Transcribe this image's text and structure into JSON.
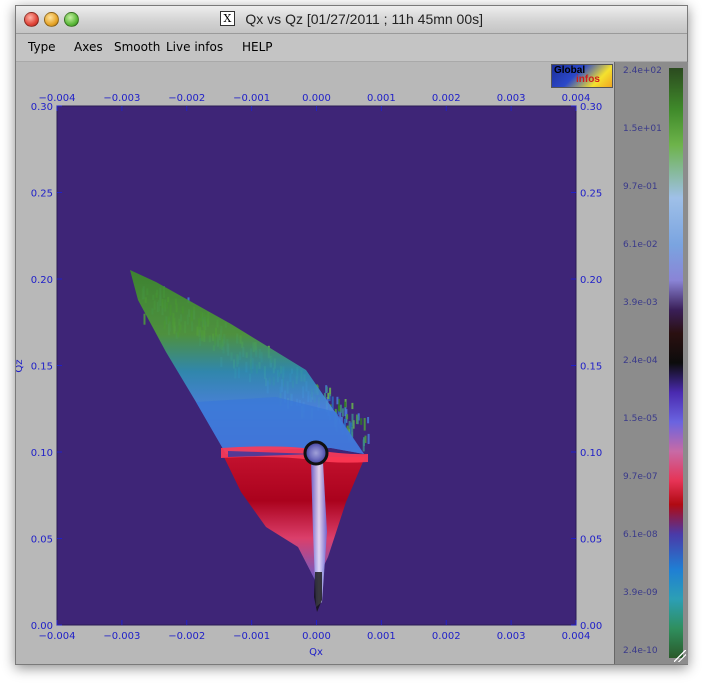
{
  "window": {
    "title": "Qx vs Qz [01/27/2011 ; 11h 45mn 00s]",
    "x_icon": "X"
  },
  "menu": {
    "items": [
      {
        "label": "Type"
      },
      {
        "label": "Axes"
      },
      {
        "label": "Smooth"
      },
      {
        "label": "Live infos"
      },
      {
        "label": "HELP"
      }
    ]
  },
  "logo": {
    "line1": "Global",
    "line2": "infos"
  },
  "plot": {
    "xlabel": "Qx",
    "ylabel": "Qz",
    "xlim": [
      -0.004,
      0.004
    ],
    "ylim": [
      0.0,
      0.3
    ],
    "x_ticks": [
      "−0.004",
      "−0.003",
      "−0.002",
      "−0.001",
      "0.000",
      "0.001",
      "0.002",
      "0.003",
      "0.004"
    ],
    "y_ticks": [
      "0.00",
      "0.05",
      "0.10",
      "0.15",
      "0.20",
      "0.25",
      "0.30"
    ],
    "colors": {
      "background": "#3e2577",
      "axis_text": "#2020c8"
    }
  },
  "colorbar": {
    "labels": [
      "2.4e+02",
      "1.5e+01",
      "9.7e-01",
      "6.1e-02",
      "3.9e-03",
      "2.4e-04",
      "1.5e-05",
      "9.7e-07",
      "6.1e-08",
      "3.9e-09",
      "2.4e-10"
    ]
  }
}
